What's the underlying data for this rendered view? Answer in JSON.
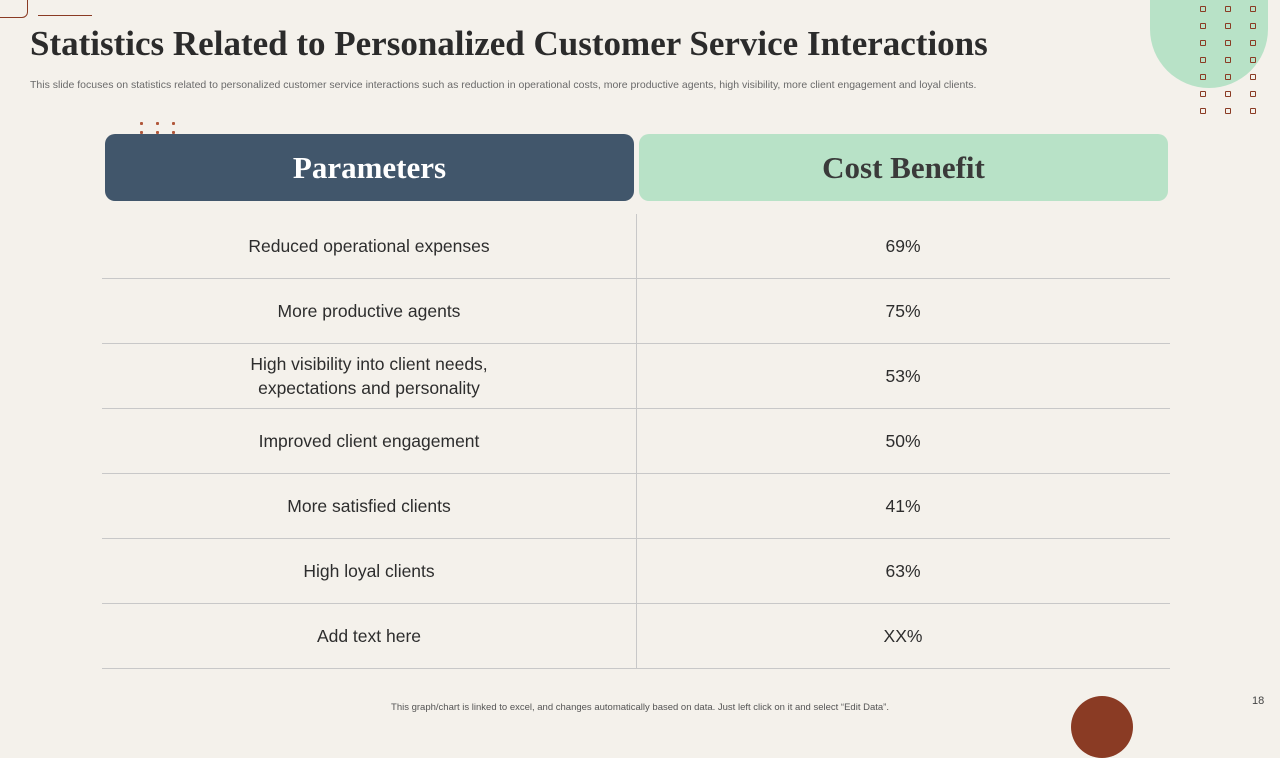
{
  "slide": {
    "title": "Statistics Related to Personalized Customer Service Interactions",
    "subtitle": "This slide focuses on statistics related to personalized customer service interactions such as reduction in operational costs, more productive agents, high visibility, more client engagement and loyal clients.",
    "footnote": "This graph/chart is linked to excel, and changes automatically based on data. Just left click on it and select “Edit Data”.",
    "page_number": "18"
  },
  "table": {
    "headers": {
      "parameters": "Parameters",
      "cost_benefit": "Cost Benefit"
    },
    "rows": [
      {
        "parameter": "Reduced operational expenses",
        "value": "69%"
      },
      {
        "parameter": "More productive agents",
        "value": "75%"
      },
      {
        "parameter": "High visibility into client needs,\nexpectations and personality",
        "value": "53%"
      },
      {
        "parameter": "Improved client engagement",
        "value": "50%"
      },
      {
        "parameter": "More satisfied clients",
        "value": "41%"
      },
      {
        "parameter": "High loyal clients",
        "value": "63%"
      },
      {
        "parameter": "Add text here",
        "value": "XX%"
      }
    ]
  },
  "colors": {
    "background": "#f4f1eb",
    "header_dark": "#41566b",
    "header_mint": "#b8e2c7",
    "accent_brown": "#8a3b24"
  }
}
